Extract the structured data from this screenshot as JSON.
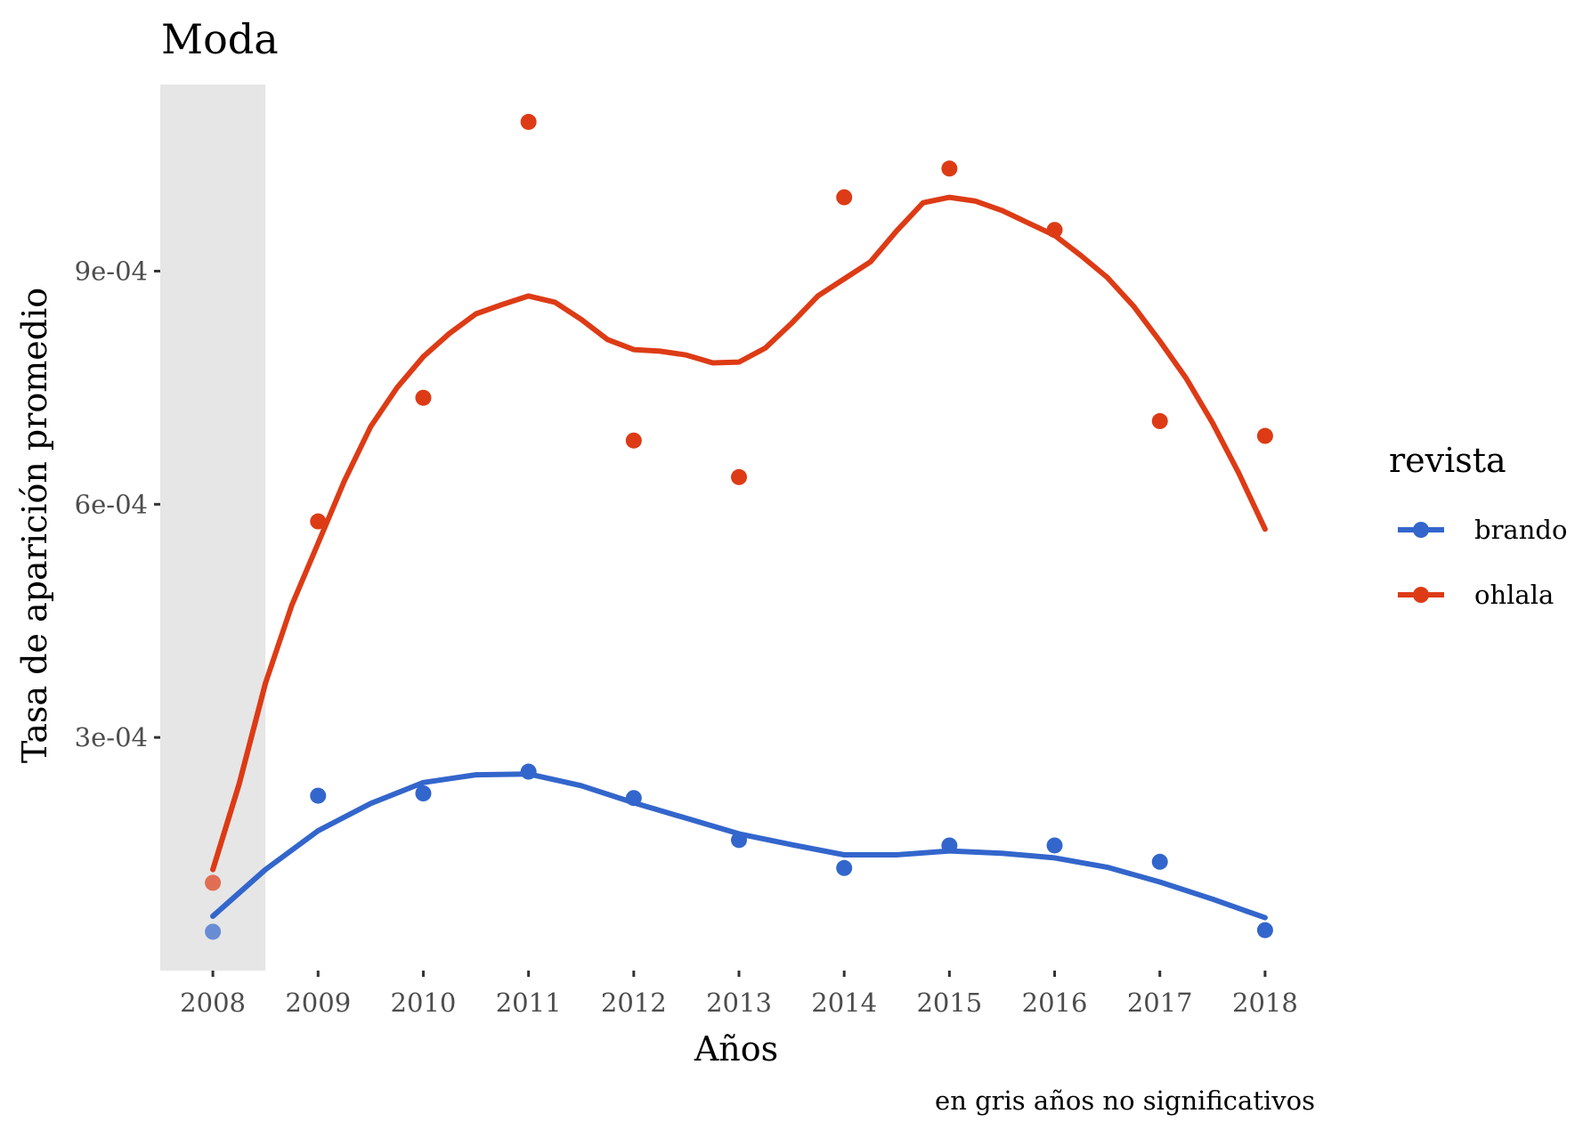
{
  "chart_data": {
    "type": "line",
    "title": "Moda",
    "xlabel": "Años",
    "ylabel": "Tasa de aparición promedio",
    "caption": "en gris años no significativos",
    "legend_title": "revista",
    "legend_position": "right",
    "grid": false,
    "x": [
      2008,
      2009,
      2010,
      2011,
      2012,
      2013,
      2014,
      2015,
      2016,
      2017,
      2018
    ],
    "xlim": [
      2007.5,
      2018.5
    ],
    "ylim": [
      0.0,
      0.00114
    ],
    "yticks": [
      0.0003,
      0.0006,
      0.0009
    ],
    "ytick_labels": [
      "3e-04",
      "6e-04",
      "9e-04"
    ],
    "shaded_years": [
      2008
    ],
    "shade_color": "#e6e6e6",
    "series": [
      {
        "name": "brando",
        "color": "#3366cc",
        "points": [
          5e-05,
          0.000225,
          0.000228,
          0.000256,
          0.000222,
          0.000168,
          0.000132,
          0.000161,
          0.000161,
          0.00014,
          5.2e-05
        ],
        "smooth": [
          [
            2008.0,
            7e-05
          ],
          [
            2008.5,
            0.00013
          ],
          [
            2009.0,
            0.00018
          ],
          [
            2009.5,
            0.000215
          ],
          [
            2010.0,
            0.000242
          ],
          [
            2010.5,
            0.000252
          ],
          [
            2011.0,
            0.000253
          ],
          [
            2011.5,
            0.000238
          ],
          [
            2012.0,
            0.000216
          ],
          [
            2012.5,
            0.000196
          ],
          [
            2013.0,
            0.000176
          ],
          [
            2013.5,
            0.000162
          ],
          [
            2014.0,
            0.000149
          ],
          [
            2014.5,
            0.000149
          ],
          [
            2015.0,
            0.000154
          ],
          [
            2015.5,
            0.000151
          ],
          [
            2016.0,
            0.000145
          ],
          [
            2016.5,
            0.000133
          ],
          [
            2017.0,
            0.000114
          ],
          [
            2017.5,
            9.2e-05
          ],
          [
            2018.0,
            6.8e-05
          ]
        ]
      },
      {
        "name": "ohlala",
        "color": "#dd3b15",
        "points": [
          0.000113,
          0.000578,
          0.000737,
          0.001092,
          0.000682,
          0.000635,
          0.000995,
          0.001032,
          0.000953,
          0.000707,
          0.000688
        ],
        "smooth": [
          [
            2008.0,
            0.00013
          ],
          [
            2008.25,
            0.00024
          ],
          [
            2008.5,
            0.00037
          ],
          [
            2008.75,
            0.00047
          ],
          [
            2009.0,
            0.00055
          ],
          [
            2009.25,
            0.00063
          ],
          [
            2009.5,
            0.0007
          ],
          [
            2009.75,
            0.00075
          ],
          [
            2010.0,
            0.00079
          ],
          [
            2010.25,
            0.00082
          ],
          [
            2010.5,
            0.000845
          ],
          [
            2010.75,
            0.000857
          ],
          [
            2011.0,
            0.000868
          ],
          [
            2011.25,
            0.00086
          ],
          [
            2011.5,
            0.000838
          ],
          [
            2011.75,
            0.000812
          ],
          [
            2012.0,
            0.000799
          ],
          [
            2012.25,
            0.000797
          ],
          [
            2012.5,
            0.000792
          ],
          [
            2012.75,
            0.000782
          ],
          [
            2013.0,
            0.000783
          ],
          [
            2013.25,
            0.000801
          ],
          [
            2013.5,
            0.000833
          ],
          [
            2013.75,
            0.000868
          ],
          [
            2014.0,
            0.00089
          ],
          [
            2014.25,
            0.000912
          ],
          [
            2014.5,
            0.000952
          ],
          [
            2014.75,
            0.000988
          ],
          [
            2015.0,
            0.000995
          ],
          [
            2015.25,
            0.00099
          ],
          [
            2015.5,
            0.000978
          ],
          [
            2015.75,
            0.000962
          ],
          [
            2016.0,
            0.000946
          ],
          [
            2016.25,
            0.00092
          ],
          [
            2016.5,
            0.000892
          ],
          [
            2016.75,
            0.000855
          ],
          [
            2017.0,
            0.00081
          ],
          [
            2017.25,
            0.000762
          ],
          [
            2017.5,
            0.000705
          ],
          [
            2017.75,
            0.00064
          ],
          [
            2018.0,
            0.000568
          ]
        ]
      }
    ]
  }
}
